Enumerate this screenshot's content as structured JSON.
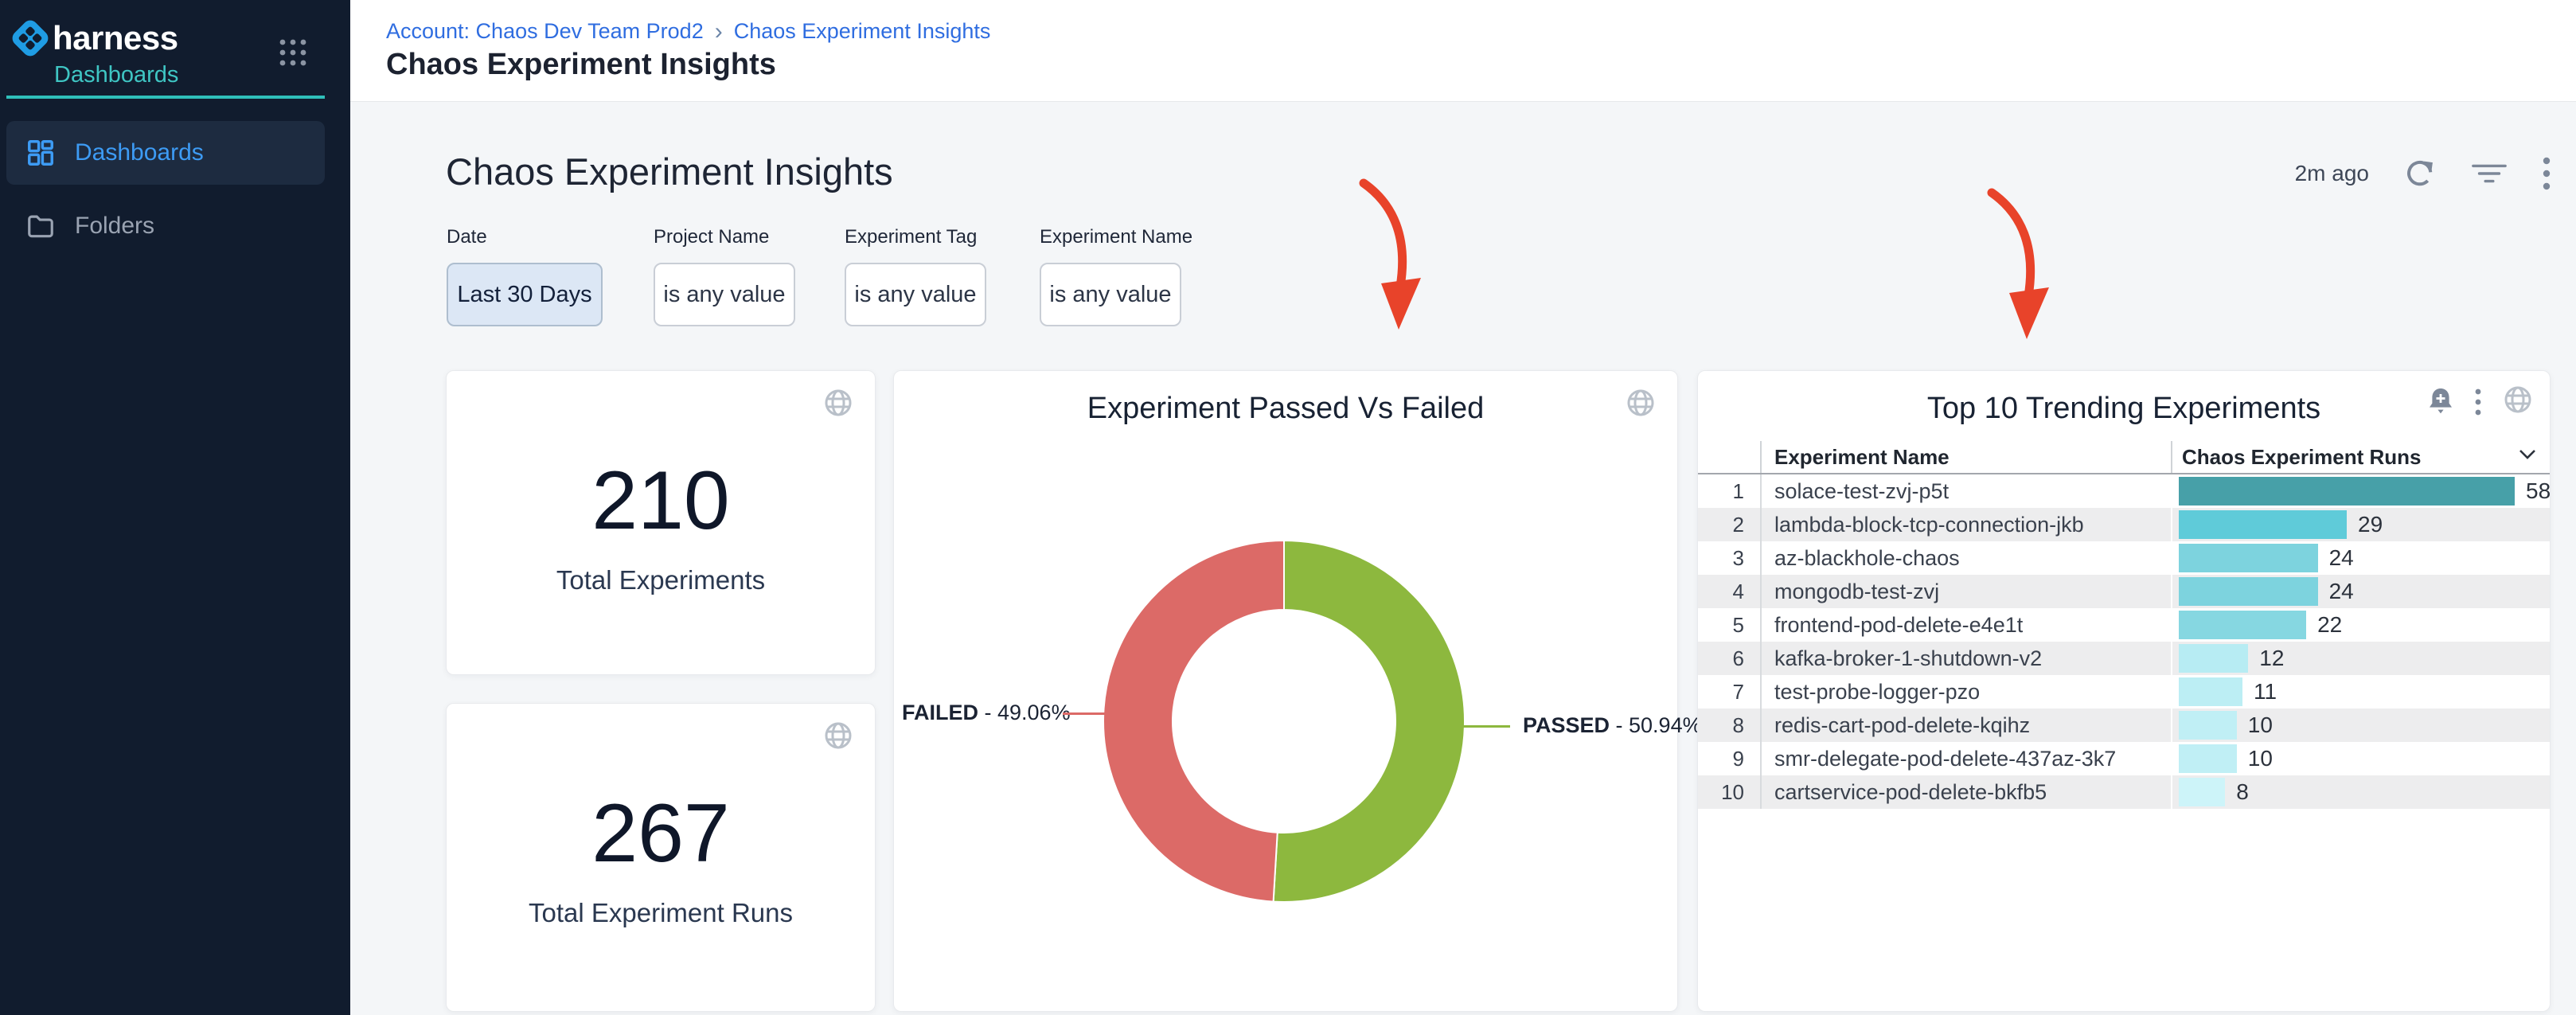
{
  "sidebar": {
    "brand": "harness",
    "module_label": "Dashboards",
    "items": [
      {
        "label": "Dashboards",
        "active": true
      },
      {
        "label": "Folders",
        "active": false
      }
    ]
  },
  "breadcrumb": {
    "account": "Account: Chaos Dev Team Prod2",
    "separator": "›",
    "current": "Chaos Experiment Insights"
  },
  "page": {
    "title": "Chaos Experiment Insights"
  },
  "toolbar": {
    "heading": "Chaos Experiment Insights",
    "last_refreshed": "2m ago"
  },
  "filters": [
    {
      "label": "Date",
      "value": "Last 30 Days",
      "active": true
    },
    {
      "label": "Project Name",
      "value": "is any value",
      "active": false
    },
    {
      "label": "Experiment Tag",
      "value": "is any value",
      "active": false
    },
    {
      "label": "Experiment Name",
      "value": "is any value",
      "active": false
    }
  ],
  "stat_cards": [
    {
      "value": "210",
      "label": "Total Experiments"
    },
    {
      "value": "267",
      "label": "Total Experiment Runs"
    }
  ],
  "chart_data": [
    {
      "type": "pie",
      "donut": true,
      "title": "Experiment Passed Vs Failed",
      "legend_position": "callout-lines",
      "slices": [
        {
          "label": "FAILED",
          "value": 49.06,
          "pct_label": "49.06%",
          "color": "#dc6a67"
        },
        {
          "label": "PASSED",
          "value": 50.94,
          "pct_label": "50.94%",
          "color": "#8db83e"
        }
      ]
    },
    {
      "type": "bar",
      "orientation": "horizontal",
      "title": "Top 10 Trending Experiments",
      "columns": [
        "Experiment Name",
        "Chaos Experiment Runs"
      ],
      "max_value": 58,
      "rows": [
        {
          "rank": 1,
          "name": "solace-test-zvj-p5t",
          "runs": 58,
          "bar_color": "#47a0a8"
        },
        {
          "rank": 2,
          "name": "lambda-block-tcp-connection-jkb",
          "runs": 29,
          "bar_color": "#5fcbd9"
        },
        {
          "rank": 3,
          "name": "az-blackhole-chaos",
          "runs": 24,
          "bar_color": "#7dd3de"
        },
        {
          "rank": 4,
          "name": "mongodb-test-zvj",
          "runs": 24,
          "bar_color": "#7dd3de"
        },
        {
          "rank": 5,
          "name": "frontend-pod-delete-e4e1t",
          "runs": 22,
          "bar_color": "#86d7e1"
        },
        {
          "rank": 6,
          "name": "kafka-broker-1-shutdown-v2",
          "runs": 12,
          "bar_color": "#b7ecf3"
        },
        {
          "rank": 7,
          "name": "test-probe-logger-pzo",
          "runs": 11,
          "bar_color": "#bceef4"
        },
        {
          "rank": 8,
          "name": "redis-cart-pod-delete-kqihz",
          "runs": 10,
          "bar_color": "#c0eff5"
        },
        {
          "rank": 9,
          "name": "smr-delegate-pod-delete-437az-3k7",
          "runs": 10,
          "bar_color": "#c0eff5"
        },
        {
          "rank": 10,
          "name": "cartservice-pod-delete-bkfb5",
          "runs": 8,
          "bar_color": "#cdf4f9"
        }
      ]
    }
  ],
  "colors": {
    "sidebar_bg": "#111c2e",
    "accent_teal": "#3fc6c4",
    "nav_blue": "#3d9bf4",
    "breadcrumb_blue": "#2f6de0",
    "annotation_arrow": "#e8432a",
    "failed_red": "#dc6a67",
    "passed_green": "#8db83e"
  }
}
